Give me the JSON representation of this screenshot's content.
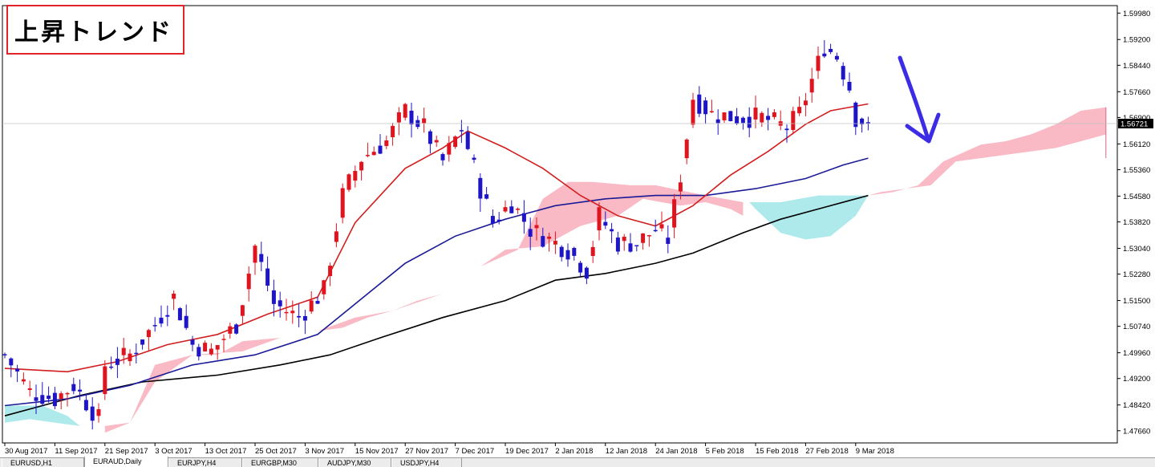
{
  "title_label": "上昇トレンド",
  "colors": {
    "bull": "#e0141e",
    "bear": "#1e14c8",
    "ma_short": "#d21e1e",
    "ma_mid": "#1a1a96",
    "ma_long": "#000000",
    "cloud_bull": "#f9b9c5",
    "cloud_bear": "#aee9ec",
    "arrow": "#3c2ce6"
  },
  "tabs": [
    {
      "label": "EURUSD,H1",
      "active": false
    },
    {
      "label": "EURAUD,Daily",
      "active": true
    },
    {
      "label": "EURJPY,H4",
      "active": false
    },
    {
      "label": "EURGBP,M30",
      "active": false
    },
    {
      "label": "AUDJPY,M30",
      "active": false
    },
    {
      "label": "USDJPY,H4",
      "active": false
    }
  ],
  "chart_data": {
    "type": "candlestick",
    "symbol": "EURAUD",
    "timeframe": "Daily",
    "ylim": [
      1.473,
      1.602
    ],
    "y_ticks": [
      "1.59980",
      "1.59200",
      "1.58440",
      "1.57660",
      "1.56900",
      "1.56120",
      "1.55360",
      "1.54580",
      "1.53820",
      "1.53040",
      "1.52280",
      "1.51500",
      "1.50740",
      "1.49960",
      "1.49200",
      "1.48420",
      "1.47660"
    ],
    "current_price": "1.56721",
    "x_labels": [
      {
        "label": "30 Aug 2017",
        "index": 0
      },
      {
        "label": "11 Sep 2017",
        "index": 8
      },
      {
        "label": "21 Sep 2017",
        "index": 16
      },
      {
        "label": "3 Oct 2017",
        "index": 24
      },
      {
        "label": "13 Oct 2017",
        "index": 32
      },
      {
        "label": "25 Oct 2017",
        "index": 40
      },
      {
        "label": "3 Nov 2017",
        "index": 48
      },
      {
        "label": "15 Nov 2017",
        "index": 56
      },
      {
        "label": "27 Nov 2017",
        "index": 64
      },
      {
        "label": "7 Dec 2017",
        "index": 72
      },
      {
        "label": "19 Dec 2017",
        "index": 80
      },
      {
        "label": "2 Jan 2018",
        "index": 88
      },
      {
        "label": "12 Jan 2018",
        "index": 96
      },
      {
        "label": "24 Jan 2018",
        "index": 104
      },
      {
        "label": "5 Feb 2018",
        "index": 112
      },
      {
        "label": "15 Feb 2018",
        "index": 120
      },
      {
        "label": "27 Feb 2018",
        "index": 128
      },
      {
        "label": "9 Mar 2018",
        "index": 136
      }
    ],
    "close_points": [
      [
        0,
        1.499
      ],
      [
        4,
        1.488
      ],
      [
        8,
        1.486
      ],
      [
        11,
        1.49
      ],
      [
        15,
        1.48
      ],
      [
        16,
        1.496
      ],
      [
        20,
        1.499
      ],
      [
        24,
        1.508
      ],
      [
        27,
        1.516
      ],
      [
        30,
        1.502
      ],
      [
        33,
        1.5
      ],
      [
        37,
        1.508
      ],
      [
        40,
        1.531
      ],
      [
        43,
        1.514
      ],
      [
        47,
        1.51
      ],
      [
        51,
        1.518
      ],
      [
        54,
        1.546
      ],
      [
        57,
        1.557
      ],
      [
        61,
        1.562
      ],
      [
        64,
        1.571
      ],
      [
        67,
        1.566
      ],
      [
        70,
        1.556
      ],
      [
        73,
        1.566
      ],
      [
        76,
        1.548
      ],
      [
        78,
        1.538
      ],
      [
        81,
        1.544
      ],
      [
        84,
        1.536
      ],
      [
        87,
        1.533
      ],
      [
        90,
        1.53
      ],
      [
        93,
        1.524
      ],
      [
        95,
        1.54
      ],
      [
        98,
        1.532
      ],
      [
        101,
        1.532
      ],
      [
        104,
        1.536
      ],
      [
        106,
        1.533
      ],
      [
        108,
        1.552
      ],
      [
        110,
        1.575
      ],
      [
        113,
        1.57
      ],
      [
        117,
        1.569
      ],
      [
        121,
        1.569
      ],
      [
        125,
        1.566
      ],
      [
        127,
        1.57
      ],
      [
        129,
        1.58
      ],
      [
        131,
        1.59
      ],
      [
        133,
        1.587
      ],
      [
        135,
        1.578
      ],
      [
        136,
        1.569
      ],
      [
        138,
        1.5672
      ]
    ],
    "ma_short": [
      [
        0,
        1.495
      ],
      [
        10,
        1.494
      ],
      [
        18,
        1.497
      ],
      [
        26,
        1.502
      ],
      [
        34,
        1.505
      ],
      [
        42,
        1.511
      ],
      [
        50,
        1.516
      ],
      [
        56,
        1.538
      ],
      [
        64,
        1.554
      ],
      [
        70,
        1.56
      ],
      [
        74,
        1.565
      ],
      [
        80,
        1.56
      ],
      [
        86,
        1.554
      ],
      [
        92,
        1.546
      ],
      [
        98,
        1.54
      ],
      [
        104,
        1.537
      ],
      [
        110,
        1.543
      ],
      [
        116,
        1.552
      ],
      [
        122,
        1.559
      ],
      [
        128,
        1.567
      ],
      [
        132,
        1.571
      ],
      [
        138,
        1.573
      ]
    ],
    "ma_mid": [
      [
        0,
        1.484
      ],
      [
        10,
        1.486
      ],
      [
        20,
        1.49
      ],
      [
        30,
        1.496
      ],
      [
        40,
        1.499
      ],
      [
        50,
        1.505
      ],
      [
        56,
        1.514
      ],
      [
        64,
        1.526
      ],
      [
        72,
        1.534
      ],
      [
        80,
        1.539
      ],
      [
        88,
        1.543
      ],
      [
        96,
        1.545
      ],
      [
        104,
        1.546
      ],
      [
        112,
        1.546
      ],
      [
        120,
        1.548
      ],
      [
        128,
        1.551
      ],
      [
        134,
        1.555
      ],
      [
        138,
        1.557
      ]
    ],
    "ma_long": [
      [
        0,
        1.481
      ],
      [
        12,
        1.487
      ],
      [
        22,
        1.491
      ],
      [
        34,
        1.493
      ],
      [
        44,
        1.496
      ],
      [
        52,
        1.499
      ],
      [
        60,
        1.504
      ],
      [
        70,
        1.51
      ],
      [
        80,
        1.515
      ],
      [
        88,
        1.521
      ],
      [
        96,
        1.523
      ],
      [
        104,
        1.526
      ],
      [
        110,
        1.529
      ],
      [
        118,
        1.535
      ],
      [
        124,
        1.539
      ],
      [
        130,
        1.542
      ],
      [
        136,
        1.545
      ],
      [
        138,
        1.546
      ]
    ],
    "cloud_bull_segments": [
      [
        [
          16,
          1.478
        ],
        [
          20,
          1.479
        ],
        [
          24,
          1.496
        ],
        [
          30,
          1.499
        ],
        [
          34,
          1.499
        ],
        [
          38,
          1.503
        ],
        [
          44,
          1.504
        ],
        [
          50,
          1.506
        ],
        [
          54,
          1.507
        ],
        [
          58,
          1.51
        ],
        [
          62,
          1.512
        ],
        [
          66,
          1.515
        ],
        [
          70,
          1.517
        ],
        [
          76,
          1.525
        ],
        [
          80,
          1.53
        ],
        [
          86,
          1.531
        ],
        [
          92,
          1.537
        ],
        [
          98,
          1.54
        ],
        [
          102,
          1.545
        ],
        [
          108,
          1.543
        ],
        [
          112,
          1.544
        ],
        [
          116,
          1.542
        ],
        [
          118,
          1.54
        ],
        [
          118,
          1.544
        ],
        [
          112,
          1.546
        ],
        [
          104,
          1.549
        ],
        [
          100,
          1.549
        ],
        [
          94,
          1.55
        ],
        [
          90,
          1.55
        ],
        [
          86,
          1.545
        ],
        [
          82,
          1.53
        ],
        [
          76,
          1.525
        ],
        [
          70,
          1.517
        ],
        [
          62,
          1.512
        ],
        [
          56,
          1.51
        ],
        [
          50,
          1.506
        ],
        [
          44,
          1.504
        ],
        [
          38,
          1.5
        ],
        [
          30,
          1.499
        ],
        [
          24,
          1.491
        ],
        [
          20,
          1.479
        ],
        [
          16,
          1.476
        ]
      ],
      [
        [
          138,
          1.546
        ],
        [
          142,
          1.547
        ],
        [
          146,
          1.549
        ],
        [
          150,
          1.556
        ],
        [
          156,
          1.561
        ],
        [
          160,
          1.562
        ],
        [
          164,
          1.564
        ],
        [
          168,
          1.567
        ],
        [
          172,
          1.571
        ],
        [
          176,
          1.572
        ],
        [
          176,
          1.564
        ],
        [
          172,
          1.562
        ],
        [
          168,
          1.56
        ],
        [
          164,
          1.559
        ],
        [
          160,
          1.558
        ],
        [
          156,
          1.557
        ],
        [
          152,
          1.556
        ],
        [
          148,
          1.549
        ],
        [
          144,
          1.548
        ],
        [
          140,
          1.547
        ],
        [
          138,
          1.546
        ]
      ]
    ],
    "cloud_bear_segments": [
      [
        [
          0,
          1.484
        ],
        [
          6,
          1.484
        ],
        [
          10,
          1.481
        ],
        [
          12,
          1.478
        ],
        [
          8,
          1.479
        ],
        [
          4,
          1.48
        ],
        [
          0,
          1.479
        ]
      ],
      [
        [
          119,
          1.544
        ],
        [
          124,
          1.544
        ],
        [
          130,
          1.546
        ],
        [
          136,
          1.546
        ],
        [
          138,
          1.546
        ],
        [
          136,
          1.54
        ],
        [
          132,
          1.534
        ],
        [
          128,
          1.533
        ],
        [
          124,
          1.535
        ],
        [
          120,
          1.542
        ]
      ]
    ],
    "chikou_last_index": 176
  }
}
